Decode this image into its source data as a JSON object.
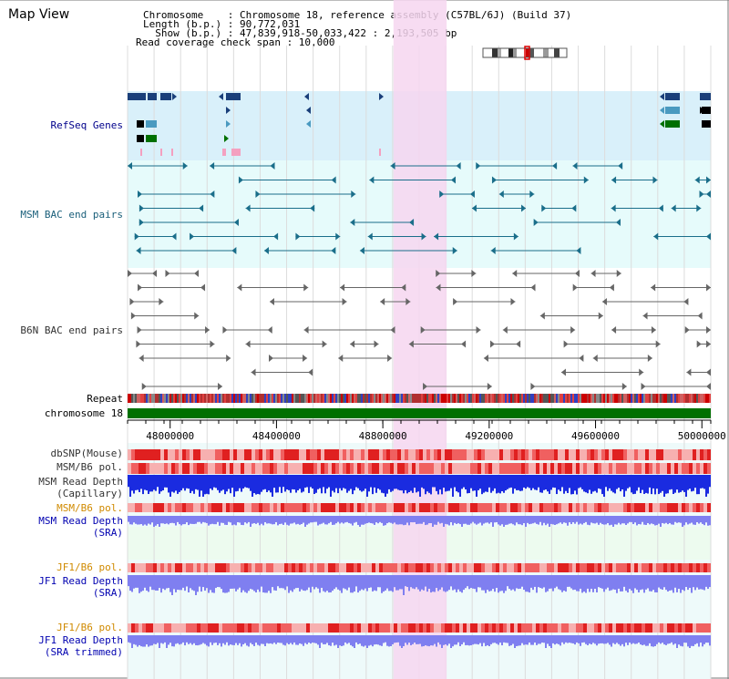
{
  "view": {
    "title": "Map View"
  },
  "info": {
    "line1": "Chromosome    : Chromosome 18, reference assembly (C57BL/6J) (Build 37)",
    "line2": "Length (b.p.) : 90,772,031",
    "line3": "  Show (b.p.) : 47,839,918-50,033,422 : 2,193,505 bp",
    "line4": "Read coverage check span : 10,000"
  },
  "tracks": {
    "refseq": "RefSeq Genes",
    "msm_bac": "MSM BAC end pairs",
    "b6n_bac": "B6N BAC end pairs",
    "repeat": "Repeat",
    "chromosome": "chromosome 18",
    "dbsnp": "dbSNP(Mouse)",
    "msm_b6_pol_1": "MSM/B6 pol.",
    "msm_depth_cap_1": "MSM Read Depth",
    "msm_depth_cap_2": "(Capillary)",
    "msm_b6_pol_2": "MSM/B6 pol.",
    "msm_depth_sra_1": "MSM Read Depth",
    "msm_depth_sra_2": "(SRA)",
    "jf1_b6_pol_1": "JF1/B6 pol.",
    "jf1_depth_sra_1": "JF1 Read Depth",
    "jf1_depth_sra_2": "(SRA)",
    "jf1_b6_pol_2": "JF1/B6 pol.",
    "jf1_depth_trim_1": "JF1 Read Depth",
    "jf1_depth_trim_2": "(SRA trimmed)"
  },
  "axis": {
    "range": [
      47839918,
      50033422
    ],
    "ticks": [
      {
        "value": 48000000,
        "label": "48000000"
      },
      {
        "value": 48400000,
        "label": "48400000"
      },
      {
        "value": 48800000,
        "label": "48800000"
      },
      {
        "value": 49200000,
        "label": "49200000"
      },
      {
        "value": 49600000,
        "label": "49600000"
      },
      {
        "value": 50000000,
        "label": "50000000"
      }
    ]
  },
  "highlight": {
    "start": 48840000,
    "end": 49040000,
    "color": "#f6d6f0"
  },
  "colors": {
    "refseq_bg": "#d9f0fa",
    "bac_bg": "#e6fbfb",
    "teal": "#1a6e8a",
    "gray": "#666666",
    "chrom": "#007000",
    "depth_cap": "#1a2be0",
    "depth_sra": "#7f7ff0",
    "pol_light": "#f7b0b0",
    "pol_dark": "#e02020"
  }
}
